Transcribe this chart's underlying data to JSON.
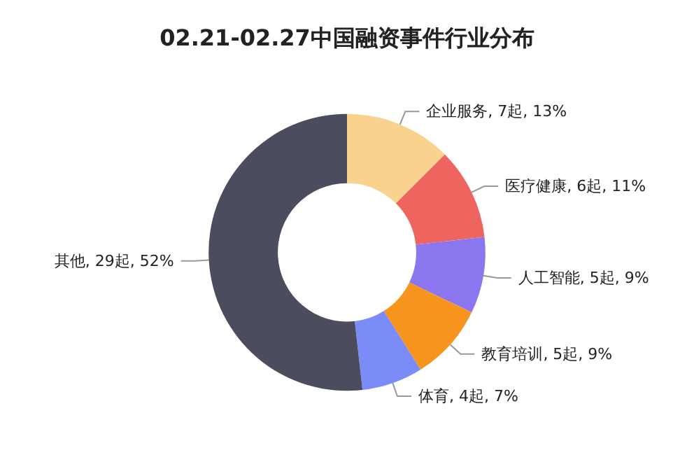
{
  "chart_data": {
    "type": "donut",
    "title": "02.21-02.27中国融资事件行业分布",
    "categories": [
      "企业服务",
      "医疗健康",
      "人工智能",
      "教育培训",
      "体育",
      "其他"
    ],
    "values": [
      7,
      6,
      5,
      5,
      4,
      29
    ],
    "value_labels": [
      "7起, 13%",
      "6起, 11%",
      "5起, 9%",
      "5起, 9%",
      "4起, 7%",
      "29起, 52%"
    ],
    "colors": [
      "#f9d38e",
      "#ee6560",
      "#8c76f0",
      "#f7941d",
      "#7b8cf8",
      "#4b4c5e"
    ],
    "legend": false
  }
}
